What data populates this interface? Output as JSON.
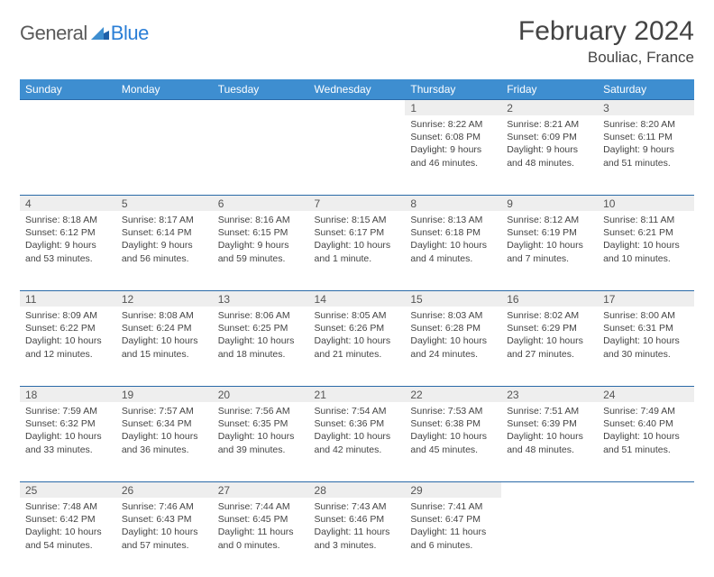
{
  "brand": {
    "part1": "General",
    "part2": "Blue"
  },
  "title": "February 2024",
  "location": "Bouliac, France",
  "colors": {
    "header_bg": "#3e8ed0",
    "header_text": "#ffffff",
    "rule": "#2a6aa8",
    "daynum_bg": "#eeeeee",
    "text": "#444444",
    "logo_blue": "#2a7ed6"
  },
  "weekdays": [
    "Sunday",
    "Monday",
    "Tuesday",
    "Wednesday",
    "Thursday",
    "Friday",
    "Saturday"
  ],
  "weeks": [
    [
      null,
      null,
      null,
      null,
      {
        "n": "1",
        "sr": "Sunrise: 8:22 AM",
        "ss": "Sunset: 6:08 PM",
        "d1": "Daylight: 9 hours",
        "d2": "and 46 minutes."
      },
      {
        "n": "2",
        "sr": "Sunrise: 8:21 AM",
        "ss": "Sunset: 6:09 PM",
        "d1": "Daylight: 9 hours",
        "d2": "and 48 minutes."
      },
      {
        "n": "3",
        "sr": "Sunrise: 8:20 AM",
        "ss": "Sunset: 6:11 PM",
        "d1": "Daylight: 9 hours",
        "d2": "and 51 minutes."
      }
    ],
    [
      {
        "n": "4",
        "sr": "Sunrise: 8:18 AM",
        "ss": "Sunset: 6:12 PM",
        "d1": "Daylight: 9 hours",
        "d2": "and 53 minutes."
      },
      {
        "n": "5",
        "sr": "Sunrise: 8:17 AM",
        "ss": "Sunset: 6:14 PM",
        "d1": "Daylight: 9 hours",
        "d2": "and 56 minutes."
      },
      {
        "n": "6",
        "sr": "Sunrise: 8:16 AM",
        "ss": "Sunset: 6:15 PM",
        "d1": "Daylight: 9 hours",
        "d2": "and 59 minutes."
      },
      {
        "n": "7",
        "sr": "Sunrise: 8:15 AM",
        "ss": "Sunset: 6:17 PM",
        "d1": "Daylight: 10 hours",
        "d2": "and 1 minute."
      },
      {
        "n": "8",
        "sr": "Sunrise: 8:13 AM",
        "ss": "Sunset: 6:18 PM",
        "d1": "Daylight: 10 hours",
        "d2": "and 4 minutes."
      },
      {
        "n": "9",
        "sr": "Sunrise: 8:12 AM",
        "ss": "Sunset: 6:19 PM",
        "d1": "Daylight: 10 hours",
        "d2": "and 7 minutes."
      },
      {
        "n": "10",
        "sr": "Sunrise: 8:11 AM",
        "ss": "Sunset: 6:21 PM",
        "d1": "Daylight: 10 hours",
        "d2": "and 10 minutes."
      }
    ],
    [
      {
        "n": "11",
        "sr": "Sunrise: 8:09 AM",
        "ss": "Sunset: 6:22 PM",
        "d1": "Daylight: 10 hours",
        "d2": "and 12 minutes."
      },
      {
        "n": "12",
        "sr": "Sunrise: 8:08 AM",
        "ss": "Sunset: 6:24 PM",
        "d1": "Daylight: 10 hours",
        "d2": "and 15 minutes."
      },
      {
        "n": "13",
        "sr": "Sunrise: 8:06 AM",
        "ss": "Sunset: 6:25 PM",
        "d1": "Daylight: 10 hours",
        "d2": "and 18 minutes."
      },
      {
        "n": "14",
        "sr": "Sunrise: 8:05 AM",
        "ss": "Sunset: 6:26 PM",
        "d1": "Daylight: 10 hours",
        "d2": "and 21 minutes."
      },
      {
        "n": "15",
        "sr": "Sunrise: 8:03 AM",
        "ss": "Sunset: 6:28 PM",
        "d1": "Daylight: 10 hours",
        "d2": "and 24 minutes."
      },
      {
        "n": "16",
        "sr": "Sunrise: 8:02 AM",
        "ss": "Sunset: 6:29 PM",
        "d1": "Daylight: 10 hours",
        "d2": "and 27 minutes."
      },
      {
        "n": "17",
        "sr": "Sunrise: 8:00 AM",
        "ss": "Sunset: 6:31 PM",
        "d1": "Daylight: 10 hours",
        "d2": "and 30 minutes."
      }
    ],
    [
      {
        "n": "18",
        "sr": "Sunrise: 7:59 AM",
        "ss": "Sunset: 6:32 PM",
        "d1": "Daylight: 10 hours",
        "d2": "and 33 minutes."
      },
      {
        "n": "19",
        "sr": "Sunrise: 7:57 AM",
        "ss": "Sunset: 6:34 PM",
        "d1": "Daylight: 10 hours",
        "d2": "and 36 minutes."
      },
      {
        "n": "20",
        "sr": "Sunrise: 7:56 AM",
        "ss": "Sunset: 6:35 PM",
        "d1": "Daylight: 10 hours",
        "d2": "and 39 minutes."
      },
      {
        "n": "21",
        "sr": "Sunrise: 7:54 AM",
        "ss": "Sunset: 6:36 PM",
        "d1": "Daylight: 10 hours",
        "d2": "and 42 minutes."
      },
      {
        "n": "22",
        "sr": "Sunrise: 7:53 AM",
        "ss": "Sunset: 6:38 PM",
        "d1": "Daylight: 10 hours",
        "d2": "and 45 minutes."
      },
      {
        "n": "23",
        "sr": "Sunrise: 7:51 AM",
        "ss": "Sunset: 6:39 PM",
        "d1": "Daylight: 10 hours",
        "d2": "and 48 minutes."
      },
      {
        "n": "24",
        "sr": "Sunrise: 7:49 AM",
        "ss": "Sunset: 6:40 PM",
        "d1": "Daylight: 10 hours",
        "d2": "and 51 minutes."
      }
    ],
    [
      {
        "n": "25",
        "sr": "Sunrise: 7:48 AM",
        "ss": "Sunset: 6:42 PM",
        "d1": "Daylight: 10 hours",
        "d2": "and 54 minutes."
      },
      {
        "n": "26",
        "sr": "Sunrise: 7:46 AM",
        "ss": "Sunset: 6:43 PM",
        "d1": "Daylight: 10 hours",
        "d2": "and 57 minutes."
      },
      {
        "n": "27",
        "sr": "Sunrise: 7:44 AM",
        "ss": "Sunset: 6:45 PM",
        "d1": "Daylight: 11 hours",
        "d2": "and 0 minutes."
      },
      {
        "n": "28",
        "sr": "Sunrise: 7:43 AM",
        "ss": "Sunset: 6:46 PM",
        "d1": "Daylight: 11 hours",
        "d2": "and 3 minutes."
      },
      {
        "n": "29",
        "sr": "Sunrise: 7:41 AM",
        "ss": "Sunset: 6:47 PM",
        "d1": "Daylight: 11 hours",
        "d2": "and 6 minutes."
      },
      null,
      null
    ]
  ]
}
